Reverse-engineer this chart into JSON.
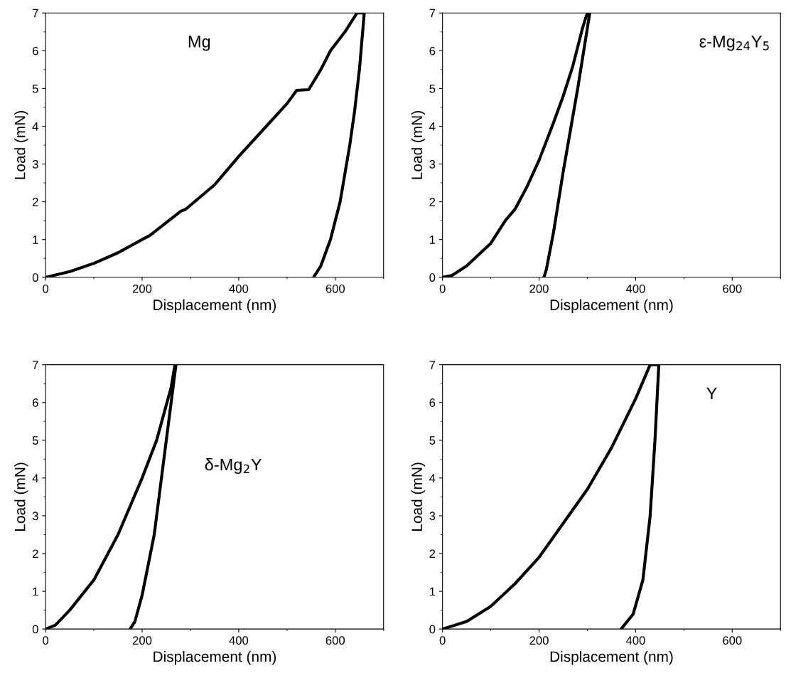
{
  "chart_data": [
    {
      "type": "line",
      "xlabel": "Displacement (nm)",
      "ylabel": "Load (mN)",
      "annotations": [
        "Mg"
      ],
      "xlim": [
        0,
        700
      ],
      "xticks": [
        0,
        200,
        400,
        600
      ],
      "ylim": [
        0,
        7
      ],
      "yticks": [
        0,
        1,
        2,
        3,
        4,
        5,
        6,
        7
      ],
      "grid": false,
      "legend": false,
      "series": [
        {
          "color": "#000000",
          "x": [
            0,
            50,
            100,
            150,
            200,
            215,
            250,
            280,
            290,
            350,
            400,
            450,
            500,
            520,
            545,
            570,
            590,
            620,
            645,
            660
          ],
          "values": [
            0,
            0.15,
            0.37,
            0.65,
            1.0,
            1.1,
            1.45,
            1.75,
            1.8,
            2.45,
            3.2,
            3.9,
            4.6,
            4.95,
            4.97,
            5.5,
            6.0,
            6.5,
            7.0,
            7.0
          ]
        },
        {
          "color": "#000000",
          "x": [
            660,
            650,
            640,
            630,
            610,
            590,
            570,
            555
          ],
          "values": [
            7.0,
            5.5,
            4.4,
            3.5,
            2.0,
            1.0,
            0.3,
            0
          ]
        }
      ]
    },
    {
      "type": "line",
      "xlabel": "Displacement (nm)",
      "ylabel": "Load (mN)",
      "annotations": [
        "ε-Mg$_{24}$Y$_{5}$"
      ],
      "xlim": [
        0,
        700
      ],
      "xticks": [
        0,
        200,
        400,
        600
      ],
      "ylim": [
        0,
        7
      ],
      "yticks": [
        0,
        1,
        2,
        3,
        4,
        5,
        6,
        7
      ],
      "grid": false,
      "legend": false,
      "series": [
        {
          "color": "#000000",
          "x": [
            0,
            20,
            50,
            100,
            130,
            150,
            175,
            200,
            230,
            250,
            270,
            290,
            300
          ],
          "values": [
            0,
            0.05,
            0.3,
            0.9,
            1.5,
            1.8,
            2.4,
            3.1,
            4.1,
            4.8,
            5.6,
            6.6,
            7.0
          ]
        },
        {
          "color": "#000000",
          "x": [
            305,
            280,
            250,
            230,
            215,
            210
          ],
          "values": [
            7.0,
            5.0,
            2.8,
            1.2,
            0.2,
            0
          ]
        }
      ]
    },
    {
      "type": "line",
      "xlabel": "Displacement (nm)",
      "ylabel": "Load (mN)",
      "annotations": [
        "δ-Mg$_{2}$Y"
      ],
      "xlim": [
        0,
        700
      ],
      "xticks": [
        0,
        200,
        400,
        600
      ],
      "ylim": [
        0,
        7
      ],
      "yticks": [
        0,
        1,
        2,
        3,
        4,
        5,
        6,
        7
      ],
      "grid": false,
      "legend": false,
      "series": [
        {
          "color": "#000000",
          "x": [
            0,
            20,
            50,
            100,
            150,
            200,
            230,
            260,
            268
          ],
          "values": [
            0,
            0.1,
            0.5,
            1.3,
            2.5,
            4.0,
            5.0,
            6.4,
            7.0
          ]
        },
        {
          "color": "#000000",
          "x": [
            270,
            250,
            225,
            200,
            185,
            175
          ],
          "values": [
            7.0,
            5.0,
            2.5,
            0.9,
            0.2,
            0
          ]
        }
      ]
    },
    {
      "type": "line",
      "xlabel": "Displacement (nm)",
      "ylabel": "Load (mN)",
      "annotations": [
        "Y"
      ],
      "xlim": [
        0,
        700
      ],
      "xticks": [
        0,
        200,
        400,
        600
      ],
      "ylim": [
        0,
        7
      ],
      "yticks": [
        0,
        1,
        2,
        3,
        4,
        5,
        6,
        7
      ],
      "grid": false,
      "legend": false,
      "series": [
        {
          "color": "#000000",
          "x": [
            0,
            50,
            100,
            150,
            200,
            250,
            300,
            350,
            400,
            430,
            448
          ],
          "values": [
            0,
            0.2,
            0.6,
            1.2,
            1.9,
            2.8,
            3.7,
            4.8,
            6.1,
            7.0,
            7.0
          ]
        },
        {
          "color": "#000000",
          "x": [
            448,
            440,
            430,
            415,
            395,
            370
          ],
          "values": [
            7.0,
            5.0,
            3.0,
            1.3,
            0.4,
            0
          ]
        }
      ]
    }
  ]
}
